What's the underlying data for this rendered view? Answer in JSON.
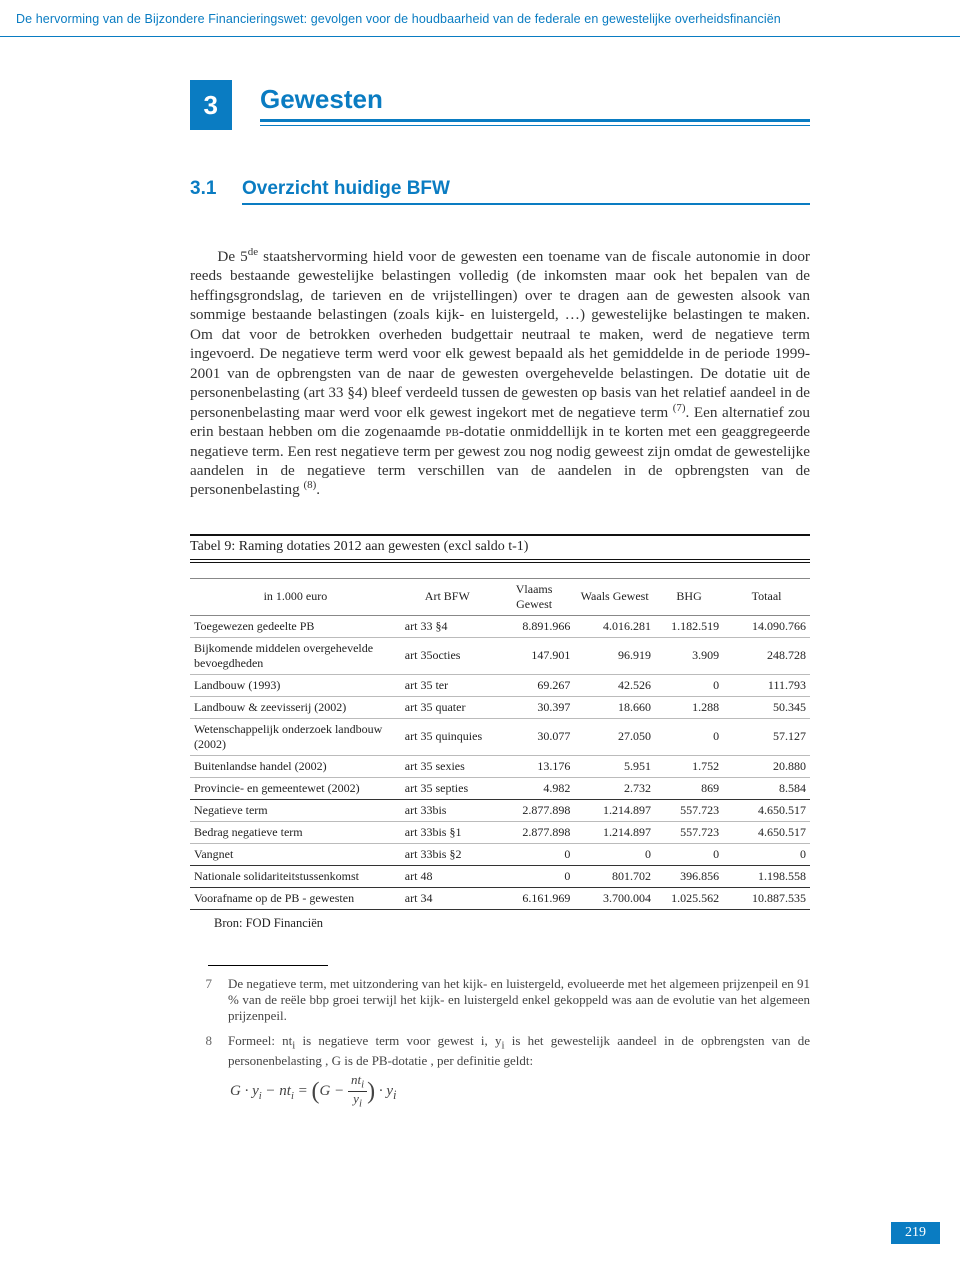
{
  "header": {
    "text": "De hervorming van de Bijzondere Financieringswet: gevolgen voor de houdbaarheid van de federale en gewestelijke overheidsfinanciën",
    "color": "#0a7cc2"
  },
  "chapter": {
    "number": "3",
    "title": "Gewesten"
  },
  "subsection": {
    "number": "3.1",
    "title": "Overzicht huidige BFW"
  },
  "paragraph": "De 5de staatshervorming hield voor de gewesten een toename van de fiscale autonomie in door reeds bestaande gewestelijke belastingen volledig (de inkomsten maar ook het bepalen van de heffingsgrondslag, de tarieven en de vrijstellingen) over te dragen aan de gewesten alsook van sommige bestaande belastingen (zoals kijk- en luistergeld, …) gewestelijke belastingen te maken. Om dat voor de betrokken overheden budgettair neutraal te maken, werd de negatieve term ingevoerd. De negatieve term werd voor elk gewest bepaald als het gemiddelde in de periode 1999-2001 van de opbrengsten van de naar de gewesten overgehevelde belastingen. De dotatie uit de personenbelasting (art 33 §4) bleef verdeeld tussen de gewesten op basis van het relatief aandeel in de personenbelasting maar werd voor elk gewest ingekort met de negatieve term (7). Een alternatief zou erin bestaan hebben om die zogenaamde PB-dotatie onmiddellijk in te korten met een geaggregeerde negatieve term. Een rest negatieve term per gewest zou nog nodig geweest zijn omdat de gewestelijke aandelen in de negatieve term verschillen van de aandelen in de opbrengsten van de personenbelasting (8).",
  "table": {
    "caption": "Tabel 9: Raming dotaties 2012 aan gewesten (excl saldo t-1)",
    "columns": [
      "in 1.000 euro",
      "Art BFW",
      "Vlaams Gewest",
      "Waals Gewest",
      "BHG",
      "Totaal"
    ],
    "rows": [
      {
        "indent": 0,
        "label": "Toegewezen gedeelte PB",
        "art": "art 33 §4",
        "vals": [
          "8.891.966",
          "4.016.281",
          "1.182.519",
          "14.090.766"
        ],
        "line": "light"
      },
      {
        "indent": 0,
        "label": "Bijkomende middelen overgehevelde bevoegdheden",
        "art": "art 35octies",
        "vals": [
          "147.901",
          "96.919",
          "3.909",
          "248.728"
        ],
        "line": "light"
      },
      {
        "indent": 1,
        "label": "Landbouw (1993)",
        "art": "art 35 ter",
        "vals": [
          "69.267",
          "42.526",
          "0",
          "111.793"
        ],
        "line": "light"
      },
      {
        "indent": 1,
        "label": "Landbouw & zeevisserij (2002)",
        "art": "art 35 quater",
        "vals": [
          "30.397",
          "18.660",
          "1.288",
          "50.345"
        ],
        "line": "light"
      },
      {
        "indent": 1,
        "label": "Wetenschappelijk onderzoek landbouw (2002)",
        "art": "art 35 quinquies",
        "vals": [
          "30.077",
          "27.050",
          "0",
          "57.127"
        ],
        "line": "light"
      },
      {
        "indent": 1,
        "label": "Buitenlandse handel (2002)",
        "art": "art 35 sexies",
        "vals": [
          "13.176",
          "5.951",
          "1.752",
          "20.880"
        ],
        "line": "light"
      },
      {
        "indent": 1,
        "label": "Provincie- en gemeentewet (2002)",
        "art": "art 35 septies",
        "vals": [
          "4.982",
          "2.732",
          "869",
          "8.584"
        ],
        "line": "dark"
      },
      {
        "indent": 0,
        "label": "Negatieve term",
        "art": "art 33bis",
        "vals": [
          "2.877.898",
          "1.214.897",
          "557.723",
          "4.650.517"
        ],
        "line": "light"
      },
      {
        "indent": 1,
        "label": "Bedrag negatieve term",
        "art": "art 33bis §1",
        "vals": [
          "2.877.898",
          "1.214.897",
          "557.723",
          "4.650.517"
        ],
        "line": "light"
      },
      {
        "indent": 1,
        "label": "Vangnet",
        "art": "art 33bis §2",
        "vals": [
          "0",
          "0",
          "0",
          "0"
        ],
        "line": "dark"
      },
      {
        "indent": 0,
        "label": "Nationale solidariteitstussenkomst",
        "art": "art 48",
        "vals": [
          "0",
          "801.702",
          "396.856",
          "1.198.558"
        ],
        "line": "dark"
      },
      {
        "indent": 0,
        "label": "Voorafname op de PB - gewesten",
        "art": "art 34",
        "vals": [
          "6.161.969",
          "3.700.004",
          "1.025.562",
          "10.887.535"
        ],
        "line": "dark"
      }
    ],
    "source": "Bron: FOD Financiën",
    "col_widths": [
      "34%",
      "15%",
      "13%",
      "13%",
      "11%",
      "14%"
    ]
  },
  "footnotes": [
    {
      "num": "7",
      "text": "De negatieve term, met uitzondering van het kijk- en luistergeld, evolueerde met het algemeen prijzenpeil en 91 % van de reële bbp groei terwijl het kijk- en luistergeld enkel gekoppeld was aan de evolutie van het algemeen prijzenpeil."
    },
    {
      "num": "8",
      "text": "Formeel: nti is negatieve term voor gewest i, yi is het gewestelijk aandeel in de opbrengsten van de personenbelasting , G is de PB-dotatie , per definitie geldt:"
    }
  ],
  "formula": {
    "lhs": "G · yᵢ − ntᵢ =",
    "paren_inner_left": "G −",
    "frac_top": "ntᵢ",
    "frac_bot": "yᵢ",
    "tail": "· yᵢ"
  },
  "page_number": "219",
  "colors": {
    "accent": "#0a7cc2",
    "text": "#333333",
    "rule_dark": "#111111",
    "rule_light": "#bbbbbb"
  }
}
